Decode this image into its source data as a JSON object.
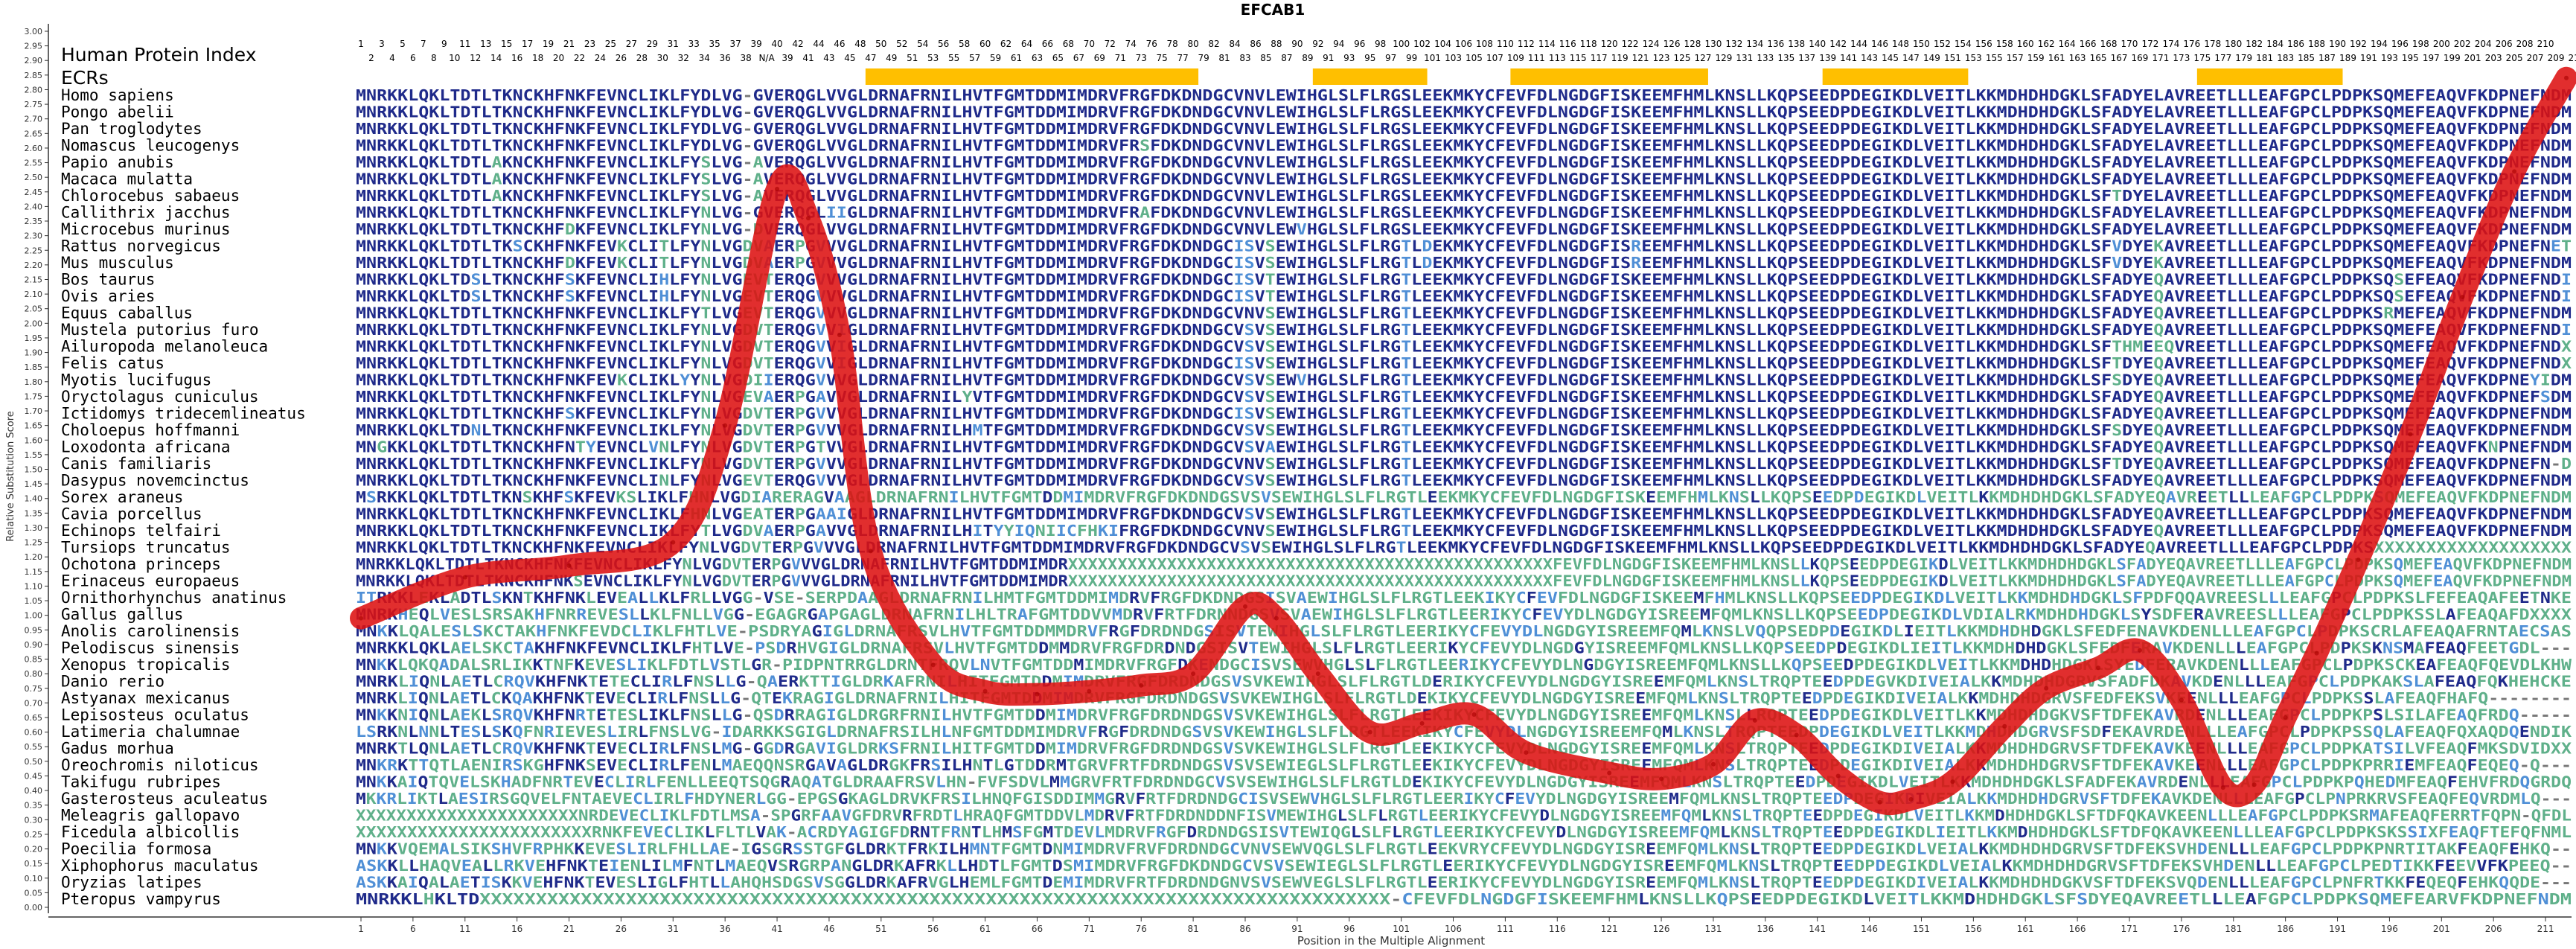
{
  "chart_data": {
    "type": "line",
    "title": "EFCAB1",
    "xlabel": "Position in the Multiple Alignment",
    "ylabel": "Relative Substitution Score",
    "ylim": [
      0.0,
      3.0
    ],
    "y_ticks": [
      "0.00",
      "0.05",
      "0.10",
      "0.15",
      "0.20",
      "0.25",
      "0.30",
      "0.35",
      "0.40",
      "0.45",
      "0.50",
      "0.55",
      "0.60",
      "0.65",
      "0.70",
      "0.75",
      "0.80",
      "0.85",
      "0.90",
      "0.95",
      "1.00",
      "1.05",
      "1.10",
      "1.15",
      "1.20",
      "1.25",
      "1.30",
      "1.35",
      "1.40",
      "1.45",
      "1.50",
      "1.55",
      "1.60",
      "1.65",
      "1.70",
      "1.75",
      "1.80",
      "1.85",
      "1.90",
      "1.95",
      "2.00",
      "2.05",
      "2.10",
      "2.15",
      "2.20",
      "2.25",
      "2.30",
      "2.35",
      "2.40",
      "2.45",
      "2.50",
      "2.55",
      "2.60",
      "2.65",
      "2.70",
      "2.75",
      "2.80",
      "2.85",
      "2.90",
      "2.95",
      "3.00"
    ],
    "x_ticks": [
      "1",
      "6",
      "11",
      "16",
      "21",
      "26",
      "31",
      "36",
      "41",
      "46",
      "51",
      "56",
      "61",
      "66",
      "71",
      "76",
      "81",
      "86",
      "91",
      "96",
      "101",
      "106",
      "111",
      "116",
      "121",
      "126",
      "131",
      "136",
      "141",
      "146",
      "151",
      "156",
      "161",
      "166",
      "171",
      "176",
      "181",
      "186",
      "191",
      "196",
      "201",
      "206",
      "211"
    ],
    "human_index_label": "Human Protein Index",
    "human_index_top": [
      "1",
      "3",
      "5",
      "7",
      "9",
      "11",
      "13",
      "15",
      "17",
      "19",
      "21",
      "23",
      "25",
      "27",
      "29",
      "31",
      "33",
      "35",
      "37",
      "39",
      "40",
      "42",
      "44",
      "46",
      "48",
      "50",
      "52",
      "54",
      "56",
      "58",
      "60",
      "62",
      "64",
      "66",
      "68",
      "70",
      "72",
      "74",
      "76",
      "78",
      "80",
      "82",
      "84",
      "86",
      "88",
      "90",
      "92",
      "94",
      "96",
      "98",
      "100",
      "102",
      "104",
      "106",
      "108",
      "110",
      "112",
      "114",
      "116",
      "118",
      "120",
      "122",
      "124",
      "126",
      "128",
      "130",
      "132",
      "134",
      "136",
      "138",
      "140",
      "142",
      "144",
      "146",
      "148",
      "150",
      "152",
      "154",
      "156",
      "158",
      "160",
      "162",
      "164",
      "166",
      "168",
      "170",
      "172",
      "174",
      "176",
      "178",
      "180",
      "182",
      "184",
      "186",
      "188",
      "190",
      "192",
      "194",
      "196",
      "198",
      "200",
      "202",
      "204",
      "206",
      "208",
      "210"
    ],
    "human_index_bottom": [
      "2",
      "4",
      "6",
      "8",
      "10",
      "12",
      "14",
      "16",
      "18",
      "20",
      "22",
      "24",
      "26",
      "28",
      "30",
      "32",
      "34",
      "36",
      "38",
      "N/A",
      "39",
      "41",
      "43",
      "45",
      "47",
      "49",
      "51",
      "53",
      "55",
      "57",
      "59",
      "61",
      "63",
      "65",
      "67",
      "69",
      "71",
      "73",
      "75",
      "77",
      "79",
      "81",
      "83",
      "85",
      "87",
      "89",
      "91",
      "93",
      "95",
      "97",
      "99",
      "101",
      "103",
      "105",
      "107",
      "109",
      "111",
      "113",
      "115",
      "117",
      "119",
      "121",
      "123",
      "125",
      "127",
      "129",
      "131",
      "133",
      "135",
      "137",
      "139",
      "141",
      "143",
      "145",
      "147",
      "149",
      "151",
      "153",
      "155",
      "157",
      "159",
      "161",
      "163",
      "165",
      "167",
      "169",
      "171",
      "173",
      "175",
      "177",
      "179",
      "181",
      "183",
      "185",
      "187",
      "189",
      "191",
      "193",
      "195",
      "197",
      "199",
      "201",
      "203",
      "205",
      "207",
      "209",
      "211"
    ],
    "ecrs_label": "ECRs",
    "ecrs": [
      [
        50,
        81
      ],
      [
        93,
        103
      ],
      [
        112,
        130
      ],
      [
        142,
        155
      ],
      [
        178,
        191
      ]
    ],
    "species": [
      "Homo sapiens",
      "Pongo abelii",
      "Pan troglodytes",
      "Nomascus leucogenys",
      "Papio anubis",
      "Macaca mulatta",
      "Chlorocebus sabaeus",
      "Callithrix jacchus",
      "Microcebus murinus",
      "Rattus norvegicus",
      "Mus musculus",
      "Bos taurus",
      "Ovis aries",
      "Equus caballus",
      "Mustela putorius furo",
      "Ailuropoda melanoleuca",
      "Felis catus",
      "Myotis lucifugus",
      "Oryctolagus cuniculus",
      "Ictidomys tridecemlineatus",
      "Choloepus hoffmanni",
      "Loxodonta africana",
      "Canis familiaris",
      "Dasypus novemcinctus",
      "Sorex araneus",
      "Cavia porcellus",
      "Echinops telfairi",
      "Tursiops truncatus",
      "Ochotona princeps",
      "Erinaceus europaeus",
      "Ornithorhynchus anatinus",
      "Gallus gallus",
      "Anolis carolinensis",
      "Pelodiscus sinensis",
      "Xenopus tropicalis",
      "Danio rerio",
      "Astyanax mexicanus",
      "Lepisosteus oculatus",
      "Latimeria chalumnae",
      "Gadus morhua",
      "Oreochromis niloticus",
      "Takifugu rubripes",
      "Gasterosteus aculeatus",
      "Meleagris gallopavo",
      "Ficedula albicollis",
      "Poecilia formosa",
      "Xiphophorus maculatus",
      "Oryzias latipes",
      "Pteropus vampyrus"
    ],
    "sequences": [
      "MNRKKLQKLTDTLTKNCKHFNKFEVNCLIKLFYDLVG-GVERQGLVVGLDRNAFRNILHVTFGMTDDMIMDRVFRGFDKDNDGCVNVLEWIHGLSLFLRGSLEEKMKYCFEVFDLNGDGFISKEEMFHMLKNSLLKQPSEEDPDEGIKDLVEITLKKMDHDHDGKLSFADYELAVREETLLLEAFGPCLPDPKSQMEFEAQVFKDPNEFNDM",
      "MNRKKLQKLTDTLTKNCKHFNKFEVNCLIKLFYDLVG-GVERQGLVVGLDRNAFRNILHVTFGMTDDMIMDRVFRGFDKDNDGCVNVLEWIHGLSLFLRGSLEEKMKYCFEVFDLNGDGFISKEEMFHMLKNSLLKQPSEEDPDEGIKDLVEITLKKMDHDHDGKLSFADYELAVREETLLLEAFGPCLPDPKSQMEFEAQVFKDPNEFNDM",
      "MNRKKLQKLTDTLTKNCKHFNKFEVNCLIKLFYDLVG-GVERQGLVVGLDRNAFRNILHVTFGMTDDMIMDRVFRGFDKDNDGCVNVLEWIHGLSLFLRGSLEEKMKYCFEVFDLNGDGFISKEEMFHMLKNSLLKQPSEEDPDEGIKDLVEITLKKMDHDHDGKLSFADYELAVREETLLLEAFGPCLPDPKSQMEFEAQVFKDPNEFNDM",
      "MNRKKLQKLTDTLTKNCKHFNKFEVNCLIKLFYDLVG-GVERQGLVVGLDRNAFRNILHVTFGMTDDMIMDRVFRSFDKDNDGCVNVLEWIHGLSLFLRGSLEEKMKYCFEVFDLNGDGFISKEEMFHMLKNSLLKQPSEEDPDEGIKDLVEITLKKMDHDHDGKLSFADYELAVREETLLLEAFGPCLPDPKSQMEFEAQVFKDPNEFNDM",
      "MNRKKLQKLTDTLAKNCKHFNKFEVNCLIKLFYSLVG-AVERQGLVVGLDRNAFRNILHVTFGMTDDMIMDRVFRGFDKDNDGCVNVLEWIHGLSLFLRGSLEEKMKYCFEVFDLNGDGFISKEEMFHMLKNSLLKQPSEEDPDEGIKDLVEITLKKMDHDHDGKLSFADYELAVREETLLLEAFGPCLPDPKSQMEFEAQVFKDPNEFNDM",
      "MNRKKLQKLTDTLAKNCKHFNKFEVNCLIKLFYSLVG-AVERQGLVVGLDRNAFRNILHVTFGMTDDMIMDRVFRGFDKDNDGCVNVLEWIHGLSLFLRGSLEEKMKYCFEVFDLNGDGFISKEEMFHMLKNSLLKQPSEEDPDEGIKDLVEITLKKMDHDHDGKLSFADYELAVREETLLLEAFGPCLPDPKSQMEFEAQVFKDPNEFNDM",
      "MNRKKLQKLTDTLAKNCKHFNKFEVNCLIKLFYSLVG-AVERQGLVVGLDRNAFRNILHVTFGMTDDMIMDRVFRGFDKDNDGCVNVLEWIHGLSLFLRGSLEEKMKYCFEVFDLNGDGFISKEEMFHMLKNSLLKQPSEEDPDEGIKDLVEITLKKMDHDHDGKLSFTDYELAVREETLLLEAFGPCLPDPKSQMEFEAQVFKDPNEFNDM",
      "MNRKKLQKLTDTLTKNCKHFNKFEVNCLIKLFYNLVG-GVERQGLIIGLDRNAFRNILHVTFGMTDDMIMDRVFRAFDKDNDGCVNVLEWIHGLSLFLRGSLEEKMKYCFEVFDLNGDGFISKEEMFHMLKNSLLKQPSEEDPDEGIKDLVEITLKKMDHDHDGKLSFADYELAVREETLLLEAFGPCLPDPKSQMEFEAQVFKDPNEFNDM",
      "MNRKKLQKLTDTLTKNCKHFDKFEVNCLIKLFYNLVG-DVERQGLVVGLDRNAFRNILHVTFGMTDDMIMDRVFRGFDKDNDGCVNVLEWVHGLSLFLRGSLEEKMKYCFEVFDLNGDGFISKEEMFHMLKNSLLKQPSEEDPDEGIKDLVEITLKKMDHDHDGKLSFADYELAVREETLLLEAFGPCLPDPKSQMEFEAQVFKDPNEFNDM",
      "MNRKKLQKLTDTLTKSCKHFNKFEVKCLITLFYNLVGDVAERPGVVVGLDRNAFRNILHVTFGMTDDMIMDRVFRGFDKDNDGCISVSEWIHGLSLFLRGTLDEKMKYCFEVFDLNGDGFISREEMFHMLKNSLLKQPSEEDPDEGIKDLVEITLKKMDHDHDGKLSFVDYEKAVREETLLLEAFGPCLPDPKSQMEFEAQVFKDPNEFNET",
      "MNRKKLQKLTDTLTKNCKHFDKFEVKCLITLFYNLVGDVAERPGVVVGLDRNAFRNILHVTFGMTDDMIMDRVFRGFDKDNDGCISVSEWIHGLSLFLRGTLDEKMKYCFEVFDLNGDGFISREEMFHMLKNSLLKQPSEEDPDEGIKDLVEITLKKMDHDHDGKLSFVDYEKAVREETLLLEAFGPCLPDPKSQMEFEAQVFKDPNEFNDM",
      "MNRKKLQKLTDSLTKNCKHFSKFEVNCLIHLFYNLVGEVTERQGVVVGLDRNAFRNILHVTFGMTDDMIMDRVFRGFDKDNDGCISVTEWIHGLSLFLRGTLEEKMKYCFEVFDLNGDGFISKEEMFHMLKNSLLKQPSEEDPDEGIKDLVEITLKKMDHDHDGKLSFADYEQAVREETLLLEAFGPCLPDPKSQSEFEAQVFKDPNEFNDI",
      "MNRKKLQKLTDSLTKNCKHFSKFEVNCLIHLFYNLVGEVTERQGVVVGLDRNAFRNILHVTFGMTDDMIMDRVFRGFDKDNDGCISVTEWIHGLSLFLRGTLEEKMKYCFEVFDLNGDGFISKEEMFHMLKNSLLKQPSEEDPDEGIKDLVEITLKKMDHDHDGKLSFADYEQAVREETLLLEAFGPCLPDPKSQSEFEAQVFKDPNEFNDI",
      "MNRKKLQKLTDTLTKNCKHFNKFEVNCLIKLFYTLVGEVTERQGVVVGLDRNAFRNILHVTFGMTDDMIMDRVFRGFDKDNDGCVNVSEWIHGLSLFLRGTLEEKMKYCFEVFDLNGDGFISKEEMFHMLKNSLLKQPSEEDPDEGIKDLVEITLKKMDHDHDGKLSFADYEQAVREETLLLEAFGPCLPDPKSRMEFEAQVFKDPNEFNDM",
      "MNRKKLQKLTDTLTKNCKHFNKFEVNCLIKLFYNLVGDVTERQGVVIGLDRNAFRNILHVTFGMTDDMIMDRVFRGFDKDNDGCVSVSEWIHGLSLFLRGTLEEKMKYCFEVFDLNGDGFISKEEMFHMLKNSLLKQPSEEDPDEGIKDLVEITLKKMDHDHDGKLSFADYEQAVREETLLLEAFGPCLPDPKSQMEFEAQVFKDPNEFNDI",
      "MNRKKLQKLTDTLTKNCKHFNKFEVNCLIKLFYNLVGDVTERQGVVIGLDRNAFRNILHVTFGMTDDMIMDRVFRGFDKDNDGCVSVSEWIHGLSLFLRGTLEEKMKYCFEVFDLNGDGFISKEEMFHMLKNSLLKQPSEEDPDEGIKDLVEITLKKMDHDHDGKLSFTHMEEQVREETLLLEAFGPCLPDPKSQMEFEAQVFKDPNEFNDX",
      "MNRKKLQKLTDTLTKNCKHFNKFEVNCLIKLFYNLVGDVTERQGVVIGLDRNAFRNILHVTFGMTDDMIMDRVFRGFDKDNDGCISVSEWIHGLSLFLRGTLEEKMKYCFEVFDLNGDGFISKEEMFHMLKNSLLKQPSEEDPDEGIKDLVEITLKKMDHDHDGKLSFTDYEQAVREETLLLEAFGPCLPDPKSQMEFEAQVFKDPNEFNDX",
      "MNRKKLQKLTDTLTKNCKHFNKFEVKCLIKLYYNLVGDIIERQGVVVGLDRNAFRNILHVTFGMTDDMIMDRVFRGFDKDNDGCVSVSEWVHGLSLFLRGTLEEKMKYCFEVFDLNGDGFISKEEMFHMLKNSLLKQPSEEDPDEGIKDLVEITLKKMDHDHDGKLSFSDYEQAVREETLLLEAFGPCLPDPKSQMEFEAQVFKDPNEYIDM",
      "MNRKKLQKLTDTLTKNCKHFNKFEVNCLIKLFYNLVGEVAERPGAVVGLDRNAFRNILYVTFGMTDDMIMDRVFRGFDKDNDGCVSVSEWIHGLSLFLRGTLEEKMKYCFEVFDLNGDGFISKEEMFHMLKNSLLKQPSEEDPDEGIKDLVEITLKKMDHDHDGKLSFADYEQAVREETLLLEAFGPCLPDPKSQMEFEAQVFKDPNEFSDM",
      "MNRKKLQKLTDTLTKNCKHFSKFEVNCLIKLFYNLVGDVTERPGVVVGLDRNAFRNILHVTFGMTDDMIMDRVFRGFDKDNDGCISVSEWIHGLSLFLRGTLEEKMKYCFEVFDLNGDGFISKEEMFHMLKNSLLKQPSEEDPDEGIKDLVEITLKKMDHDHDGKLSFADYEQAVREETLLLEAFGPCLPDPKSQMEFEAQVFKDPNEFNDM",
      "MNRKKLQKLTDNLTKNCKHFNKFEVNCLIKLFYNLVGDVTERPGVVVGLDRNAFRNILHMTFGMTDDMIMDRVFRGFDKDNDGCVSVSEWIHGLSLFLRGTLEEKMKYCFEVFDLNGDGFISKEEMFHMLKNSLLKQPSEEDPDEGIKDLVEITLKKMDHDHDGKLSFSDYEQAVREETLLLEAFGPCLPDPKSQMEFEAQVFKDPNEFNDM",
      "MNGKKLQKLTDTLTKNCKHFNTYEVNCLVNLFYNLVGDVTERPGTVVGLDRNAFRNILHVTFGMTDDMIMDRVFRGFDKDNDGCVSVAEWIHGLSLFLRGTLEEKMKYCFEVFDLNGDGFISKEEMFHMLKNSLLKQPSEEDPDEGIKDLVEITLKKMDHDHDGKLSFADYEQAVREETLLLEAFGPCLPDPKSQMEFEAQVFKNPNEFNDM",
      "MNRKKLQKLTDTLTKNCKHFNKFEVNCLIKLFYNLVGDVTERPGVVVGLDRNAFRNILHVTFGMTDDMIMDRVFRGFDKDNDGCVNVSEWIHGLSLFLRGTLEEKMKYCFEVFDLNGDGFISKEEMFHMLKNSLLKQPSEEDPDEGIKDLVEITLKKMDHDHDGKLSFTDYEQAVREETLLLEAFGPCLPDPKSQMEFEAQVFKDPNEFN-D",
      "MNRKKLQKLTDTLTKNCKHFNKFEVNCLINLFYNLVGEVTERQGVVVGLDRNAFRNILHVTFGMTDDMIMDRVFRGFDKDNDGCVSVSEWIHGLSLFLRGTLEEKMKYCFEVFDLNGDGFISKEEMFHMLKNSLLKQPSEEDPDEGIKDLVEITLKKMDHDHDGKLSFADYEQAVREETLLLEAFGPCLPDPKSQMEFEAQVFKDPNEFNDM",
      "MSRKKLQKLTDTLTKNSKHFSKFEVKSLIKLFHNLVGDIARERAGVAAGLDRNAFRNILHVTFGMTDDMIMDRVFRGFDKDNDGSVSVSEWIHGLSLFLRGTLEEKMKYCFEVFDLNGDGFISKEEMFHMLKNSLLKQPSEEDPDEGIKDLVEITLKKMDHDHDGKLSFADYEQAVREETLLLEAFGPCLPDPKSQMEFEAQVFKDPNEFNDM",
      "MNRKKLQKLTDTLTKNCKHFNKFEVNCLIKLFHNLVGEATERPGAAIGLDRNAFRNILHVTFGMTDDMIMDRVFRGFDKDNDGCVSVSEWIHGLSLFLRGTLEEKMKYCFEVFDLNGDGFISKEEMFHMLKNSLLKQPSEEDPDEGIKDLVEITLKKMDHDHDGKLSFADYEQAVREETLLLEAFGPCLPDPKSQMEFEAQVFKDPNEFNDM",
      "MNRKKLQKLTDTLTKNCKHFNKFEVNCLIKLFYTLVGDVAERPGAVVGLDRNAFRNILHITYYIQNIICFHKIFRGFDKDNDGCVNVSEWIHGLSLFLRGTLEEKMKYCFEVFDLNGDGFISKEEMFHMLKNSLLKQPSEEDPDEGIKDLVEITLKKMDHDHDGKLSFADYEQAVREETLLLEAFGPCLPDPKSQMEFEAQVFKDPNEFNDM",
      "MNRKKLQKLTDTLTKNCKHFNKFEVNCLIKLFYNLVGDVTERPGVVVGLDRNAFRNILHVTFGMTDDMIMDRVFRGFDKDNDGCVSVSEWIHGLSLFLRGTLEEKMKYCFEVFDLNGDGFISKEEMFHMLKNSLLKQPSEEDPDEGIKDLVEITLKKMDHDHDGKLSFADYEQAVREETLLLEAFGPCLPDPKSXXXXXXXXXXXXXXXXXXX",
      "MNRKKLQKLTDTLTKNCKHFNKFEVNCLIKLFYNLVGDVTERPGVVVGLDRNAFRNILHVTFGMTDDMIMDRXXXXXXXXXXXXXXXXXXXXXXXXXXXXXXXXXXXXXXXXXXXXXXXXXFEVFDLNGDGFISKEEMFHMLKNSLLKQPSEEDPDEGIKDLVEITLKKMDHDHDGKLSFADYEQAVREETLLLEAFGPCLPDPKSQMEFEAQVFKDPNEFNDM",
      "MNRKKLQKLTDTLTKNCKHFNKSEVNCLIKLFYNLVGDVTERPGVVVGLDRNAFRNILHVTFGMTDDMIMDRXXXXXXXXXXXXXXXXXXXXXXXXXXXXXXXXXXXXXXXXXXXXXXXXXFEVFDLNGDGFISKEEMFHMLKNSLLKQPSEEDPDEGIKDLVEITLKKMDHDHDGKLSFADYEQAVREETLLLEAFGPCLPDPKSQMEFEAQVFKDPNEFNDM",
      "ITRKKLEKLADTLSKNTKHFNKLEVEALLKLFRLLVGG-VSE-SERPDAAGLDRNAFRNILHMTFGMTDDMIMDRVFRGFDKDNDGSISVAEWIHGLSLFLRGTLEEKIKYCFEVFDLNGDGFISKEEMFHMLKNSLLKQPSEEDPDEGIKDLVEITLKKMDHDHDGKLSFPDFQQAVREESLLLEAFGPCLPDPKSLFEFEAQAFEETNKE",
      "MNRKHEQLVESLSRSAKHFNRREVESLLKLFNLLVGG-EGAGRGAPGAGLDRNAFRNILHLTRAFGMTDDVVMDRVFRTFDRNNDGSVSVAEWIHGLSLFLRGTLEERIKYCFEVYDLNGDGYISREEMFQMLKNSLLKQPSEEDPDEGIKDLVDIALRKMDHDHDGKLSYSDFERAVREESLLLEAFGPCLPDPKSSLAFEAQAFDXXXX",
      "MNKKLQALESLSKCTAKHFNKFEVDCLIKLFHTLVE-PSDRYAGIGLDRNAFRSVLHVTFGMTDDMMDRVFRGFDRDNDGSISVTEWIHGLSLFLRGTLEERIKYCFEVYDLNGDGYISREEMFQMLKNSLVQQPSEDPDEGIKDLIEITLKKMDHDHDGKLSFEDFENAVKDENLLLEAFGPCLPDPKSCRLAFEAQAFRNTAECSAS",
      "MNRKKLQKLAELSKCTAKHFNKFEVNCLIKLFHTLVE-PSDRHVGIGLDRNAFRSVLHVTFGMTDDMMDRVFRGFDRDNDGSISVTEWIHGLSLFLRGTLEERIKYCFEVYDLNGDGYISREEMFQMLKNSLLKQPSEEDPDEGIKDLIEITLKKMDHDHDGKLSFEDFERAVKDENLLLEAFGPCLPDPKSKNSMAFEAQFEETGDL---",
      "MNKKLQKQADALSRLIKKTNFKEVESLIKLFDTLVSTLGR-PIDPNTRRGLDRNTFRQVLNVTFGMTDDMIMDRVFRGFDKENDGCISVSEWVHGLSLFLRGTLEERIKYCFEVYDLNGDGYISREEMFQMLKNSLLKQPSEEDPDEGIKDLVEITLKKMDHDHDGKLSYEDFERAVKDENLLLEAFGPCLPDPKSCKEAFEAQFQEVDLKHW",
      "MNRKLIQNLAETLCRQVKHFNKTETECLIRLFNSLLG-QAERKTTIGLDRKAFRNILHITFGMTDDMIMDRVFRGFDRDNDGSVSVKEWIHGLSLFLRGTLDERIKYCFEVYDLNGDGYISREEMFQMLKNSLTRQPTEEDPDEGVKDIVEIALKKMDHDHDGRVSFADFDKAVKDENLLLEAFGPCLPDPKAKSLAFEAQFQKHEHCKE",
      "MNRKLIQNLAETLCKQAKHFNKTEVECLIRLFNSLLG-QTEKRAGIGLDRNAFRNILHITFGMTDDMIMDRVFRGFDRDNDGSVSVKEWIHGLSLFLRGTLDEKIKYCFEVYDLNGDGYISREEMFQMLKNSLTRQPTEEDPDEGIKDIVEIALKKMDHDHDGRVSFEDFEKSVKEENLLLEAFGPCLPDPKSSLAFEAQFHAFQ--------",
      "MNKKNIQNLAEKLSRQVKHFNRTETESLIKLFNSLLG-QSDRRAGIGLDRGRFRNILHVTFGMTDDMIMDRVFRGFDRDNDGSVSVKEWIHGLSLFLRGTLEEKIKYCFEVYDLNGDGYISREEMFQMLKNSLLRQPTEEDPDEGIKDLVEITLKKMDHDHDGKVSFTDFEKAVRDENLLLEAFGPCLPDPKPSLSILAFEAQFRDQ-----",
      "LSRKNLNNLTESLSKQFNRIEVESLIRLFNSLVG-IDARKKSGIGLDRNAFRSILHLNFGMTDDMIMDRVFRGFDRDNDGSVSVKEWIHGLSLFLRGTLEEKIKYCFEVYDLNGDGYISREEMFQMLKNSLTRQPTEEDPDEGIKDLVEITLKKMDHDHDGRVSFSDFEKAVRDENLLLEAFGPCLPDPKPSSQLAFEAQFQXAQDQENDIK",
      "MNRKTLQNLAETLCRQVKHFNKTEVECLIRLFNSLMG-GGDRGAVIGLDRKSFRNILHITFGMTDDMIMDRVFRGFDRDNDGSVSVKEWIHGLSLFLRGTLEEKIKYCFEVYDLNGDGYISREEMFQMLKNSLTRQPTEEDPDEGIKDIVEIALKKMDHDHDGRVSFTDFEKAVKEENLLLEAFGPCLPDPKATSILVFEAQFMKSDVIDXX",
      "MNKRKTTQTLAENIRSKGHFNKSEVECLIRLFENLMAEQQNSRGAVAGLDRGKFRSILHNTLGTDDRMTGRVFRTFDRDNDGSVSVSEWIEGLSLFLRGTLEEKIKYCFEVYDLNGDGYISREEMFQMLKNSLTRQPTEEDPDEGIKDIVEIALKKMDHDHDGRVSFTDFEKAVKEENLLLEAFGPCLPDPKPRRIEMFEAQFEQEQ-Q---",
      "MNKKAIQTQVELSKHADFNRTEVECLIRLFENLLEEQTSQGRAQATGLDRAAFRSVLHN-FVFSDVLMMGRVFRTFDRDNDGCVSVSEWIHGLSLFLRGTLDEKIKYCFEVYDLNGDGYISREEMFQMLKNSLTRQPTEEDPDEGIKDLVEITLKKMDHDHDGKLSFADFEKAVRDENLLLEAFGPCLPDPKPQHEDMFEAQFEHVFRDQGRDQ",
      "MKKRLIKTLAESIRSGQVELFNTAEVECLIRLFHDYNERLGG-EPGSGKAGLDRVKFRSILHNQFGISDDIMMGRVFRTFDRDNDGCISVSEWVHGLSLFLRGTLEERIKYCFEVYDLNGDGYISREEMFQMLKNSLTRQPTEEDPDEGIKDIVEIALKKMDHDHDGRVSFTDFEKAVKDENLLLEAFGPCLPNPRKRVSFEAQFEQVRDMLQ---",
      "XXXXXXXXXXXXXXXXXXXXXXNRDEVECLIKLFDTLMSA-SPGRFAAVGFDRVRFRDTLHRAQFGMTDDVLMDRVFRTFDRDNDDNFISVMEWIHGLSLFLRGTLEERIKYCFEVYDLNGDGYISREEMFQMLKNSLTRQPTEEDPDEGIKDLVEITLKKMDHDHDGKLSFTDFQKAVKEENLLLEAFGPCLPDPKSRMAFEAQFERRTFQPN-QFDL",
      "XXXXXXXXXXXXXXXXXXXXXXXRNKFEVECLIKLFLTLVAK-ACRDYAGIGFDRNTFRNTLHMSFGMTDEVLMDRVFRGFDRDNDGSISVTEWIQGLSLFLRGTLEERIKYCFEVYDLNGDGYISREEMFQMLKNSLTRQPTEEDPDEGIKDLIEITLKKMDHDHDGKLSFTDFQKAVKEENLLLEAFGPCLPDPKSKSSIXFEAQFTEFQFNML",
      "MNKKVQEMALSIKSHVFRPHKKEVESLIRLFHLLAE-IGSGRSSTGFGLDRKTFRKILHMNTFGMTDNMIMDRVFRVFDRDNDGCVNVSEWVQGLSLFLRGTLEEKVRYCFEVYDLNGDGYISREEMFQMLKNSLTRQPTEEDPDEGIKDLVEIALKKMDHDHDGRVSFTDFEKSVHDENLLLEAFGPCLPDPKPNRTITAKFEAQFEHKQ--",
      "ASKKLLHAQVEALLRKVEHFNKTEIENLILMFNTLMAEQVSRGRPANGLDRKAFRKLLHDTLFGMTDSMIMDRVFRGFDKDNDGCVSVSEWIEGLSLFLRGTLEERIKYCFEVYDLNGDGYISREEMFQMLKNSLTRQPTEEDPDEGIKDLVEIALKKMDHDHDGRVSFTDFEKSVHDENLLLEAFGPCLPEDTIKKFEEVVFKPEEQ--",
      "ASKKAIQALAETISKKVEHFNKTEVESLIGLFHTLLAHQHSDGSVSGGLDRKAFRVGLHEMLFGMTDEMIMDRVFRTFDRDNDGNVSVSEWVEGLSLFLRGTLEERIKYCFEVYDLNGDGYISREEMFQMLKNSLTRQPTEEDPDEGIKDIVEIALKKMDHDHDGKVSFTDFEKSVQDENLLLEAFGPCLPNFRTKKFEQEQFEHKQQDE---",
      "MNRKKLHKLTDXXXXXXXXXXXXXXXXXXXXXXXXXXXXXXXXXXXXXXXXXXXXXXXXXXXXXXXXXXXXXXXXXXXXXXXXXXXXXXXXX-CFEVFDLNGDGFISKEEMFHMLKNSLLKQPSEEDPDEGIKDLVEITLKKMDHDHDGKLSFSDYEQAVREETLLLEAFGPCLPDPKSQMEFEARVFKDPNEFNDM"
    ],
    "series": [
      {
        "x": [
          1,
          11,
          21,
          31,
          36,
          41,
          44,
          47,
          50,
          56,
          61,
          66,
          71,
          76,
          81,
          86,
          89,
          93,
          98,
          103,
          108,
          113,
          121,
          126,
          131,
          135,
          139,
          143,
          147,
          150,
          154,
          159,
          163,
          168,
          172,
          176,
          180,
          183,
          186,
          189,
          193,
          198,
          203,
          208,
          213
        ],
        "y": [
          0.99,
          1.13,
          1.17,
          1.25,
          1.65,
          2.46,
          2.36,
          1.96,
          1.22,
          0.83,
          0.74,
          0.73,
          0.74,
          0.76,
          0.8,
          1.03,
          0.99,
          0.8,
          0.6,
          0.63,
          0.66,
          0.53,
          0.46,
          0.44,
          0.49,
          0.64,
          0.59,
          0.45,
          0.36,
          0.37,
          0.43,
          0.62,
          0.75,
          0.82,
          0.88,
          0.71,
          0.41,
          0.42,
          0.65,
          0.87,
          1.19,
          1.62,
          2.09,
          2.52,
          2.84
        ]
      }
    ],
    "legend": "none",
    "grid": false,
    "colors": {
      "line": "#dd1111",
      "ecr": "#ffbf00",
      "identical": "#1f2a8a",
      "similar": "#4f8fd6",
      "different": "#5fb08a",
      "axis": "#333333"
    }
  }
}
